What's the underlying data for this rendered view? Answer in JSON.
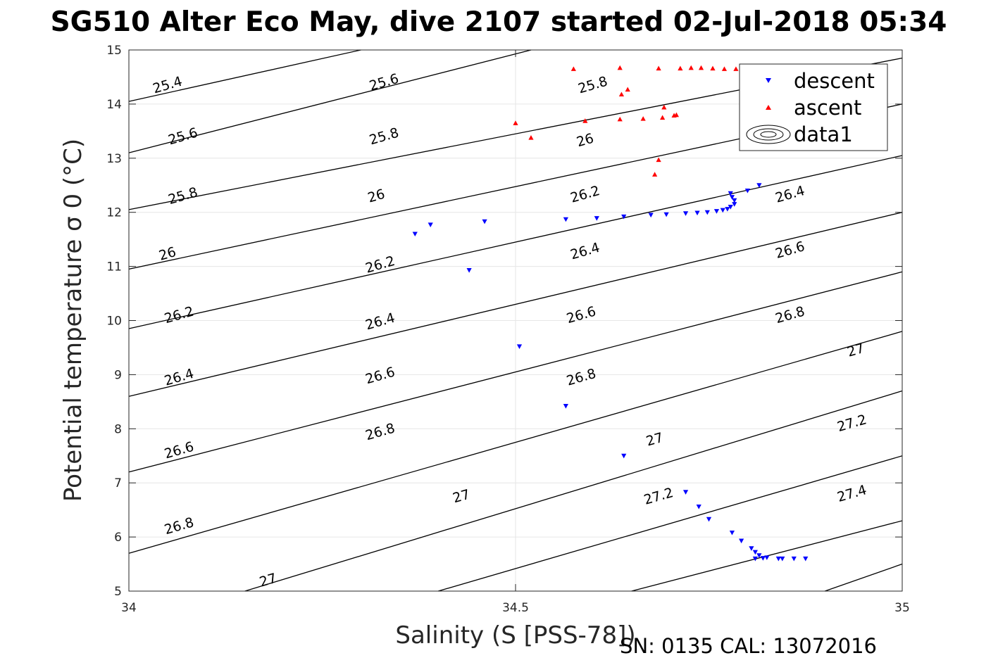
{
  "title": "SG510 Alter Eco May, dive 2107 started 02-Jul-2018 05:34",
  "footer": "SN: 0135  CAL: 13072016",
  "chart_data": {
    "type": "scatter",
    "title": "SG510 Alter Eco May, dive 2107 started 02-Jul-2018 05:34",
    "xlabel": "Salinity (S [PSS-78])",
    "ylabel": "Potential temperature σ 0 (°C)",
    "xlim": [
      34,
      35
    ],
    "ylim": [
      5,
      15
    ],
    "xticks": [
      34,
      34.5,
      35
    ],
    "xtick_labels": [
      "34",
      "34.5",
      "35"
    ],
    "yticks": [
      5,
      6,
      7,
      8,
      9,
      10,
      11,
      12,
      13,
      14,
      15
    ],
    "ytick_labels": [
      "5",
      "6",
      "7",
      "8",
      "9",
      "10",
      "11",
      "12",
      "13",
      "14",
      "15"
    ],
    "grid": true,
    "legend": {
      "position": "top-right",
      "entries": [
        {
          "label": "descent",
          "marker": "triangle-down",
          "color": "#0000ff"
        },
        {
          "label": "ascent",
          "marker": "triangle-up",
          "color": "#ff0000"
        },
        {
          "label": "data1",
          "marker": "contour",
          "color": "#000000"
        }
      ]
    },
    "contours": [
      {
        "level": 25.4,
        "label": "25.4",
        "points": [
          [
            34,
            14.05
          ],
          [
            34.3,
            15
          ]
        ]
      },
      {
        "level": 25.6,
        "label": "25.6",
        "points": [
          [
            34,
            13.1
          ],
          [
            34.52,
            15
          ]
        ]
      },
      {
        "level": 25.8,
        "label": "25.8",
        "points": [
          [
            34,
            12.05
          ],
          [
            35,
            14.85
          ]
        ]
      },
      {
        "level": 26.0,
        "label": "26",
        "points": [
          [
            34,
            10.95
          ],
          [
            35,
            14.0
          ]
        ]
      },
      {
        "level": 26.2,
        "label": "26.2",
        "points": [
          [
            34,
            9.85
          ],
          [
            35,
            13.05
          ]
        ]
      },
      {
        "level": 26.4,
        "label": "26.4",
        "points": [
          [
            34,
            8.6
          ],
          [
            35,
            12.0
          ]
        ]
      },
      {
        "level": 26.6,
        "label": "26.6",
        "points": [
          [
            34,
            7.2
          ],
          [
            35,
            10.9
          ]
        ]
      },
      {
        "level": 26.8,
        "label": "26.8",
        "points": [
          [
            34,
            5.7
          ],
          [
            35,
            9.8
          ]
        ]
      },
      {
        "level": 27.0,
        "label": "27",
        "points": [
          [
            34.15,
            5
          ],
          [
            35,
            8.7
          ]
        ]
      },
      {
        "level": 27.2,
        "label": "27.2",
        "points": [
          [
            34.4,
            5
          ],
          [
            35,
            7.5
          ]
        ]
      },
      {
        "level": 27.4,
        "label": "27.4",
        "points": [
          [
            34.65,
            5
          ],
          [
            35,
            6.3
          ]
        ]
      },
      {
        "level": 27.6,
        "label": "",
        "points": [
          [
            34.9,
            5
          ],
          [
            35,
            5.5
          ]
        ]
      }
    ],
    "contour_labels": [
      {
        "text": "25.4",
        "x": 34.05,
        "y": 14.35,
        "angle": -16
      },
      {
        "text": "25.6",
        "x": 34.07,
        "y": 13.4,
        "angle": -16
      },
      {
        "text": "25.8",
        "x": 34.07,
        "y": 12.3,
        "angle": -16
      },
      {
        "text": "26",
        "x": 34.05,
        "y": 11.23,
        "angle": -16
      },
      {
        "text": "26.2",
        "x": 34.065,
        "y": 10.1,
        "angle": -16
      },
      {
        "text": "26.4",
        "x": 34.065,
        "y": 8.95,
        "angle": -16
      },
      {
        "text": "26.6",
        "x": 34.065,
        "y": 7.6,
        "angle": -16
      },
      {
        "text": "26.8",
        "x": 34.065,
        "y": 6.2,
        "angle": -16
      },
      {
        "text": "25.6",
        "x": 34.33,
        "y": 14.4,
        "angle": -16
      },
      {
        "text": "25.8",
        "x": 34.33,
        "y": 13.4,
        "angle": -16
      },
      {
        "text": "26",
        "x": 34.32,
        "y": 12.3,
        "angle": -16
      },
      {
        "text": "26.2",
        "x": 34.325,
        "y": 11.03,
        "angle": -16
      },
      {
        "text": "26.4",
        "x": 34.325,
        "y": 9.98,
        "angle": -16
      },
      {
        "text": "26.6",
        "x": 34.325,
        "y": 8.98,
        "angle": -16
      },
      {
        "text": "26.8",
        "x": 34.325,
        "y": 7.94,
        "angle": -16
      },
      {
        "text": "27",
        "x": 34.43,
        "y": 6.75,
        "angle": -16
      },
      {
        "text": "27",
        "x": 34.18,
        "y": 5.2,
        "angle": -16
      },
      {
        "text": "25.8",
        "x": 34.6,
        "y": 14.35,
        "angle": -16
      },
      {
        "text": "26",
        "x": 34.59,
        "y": 13.33,
        "angle": -16
      },
      {
        "text": "26.2",
        "x": 34.59,
        "y": 12.33,
        "angle": -16
      },
      {
        "text": "26.4",
        "x": 34.59,
        "y": 11.28,
        "angle": -16
      },
      {
        "text": "26.6",
        "x": 34.585,
        "y": 10.1,
        "angle": -16
      },
      {
        "text": "26.8",
        "x": 34.585,
        "y": 8.95,
        "angle": -16
      },
      {
        "text": "27",
        "x": 34.68,
        "y": 7.8,
        "angle": -16
      },
      {
        "text": "27.2",
        "x": 34.685,
        "y": 6.75,
        "angle": -16
      },
      {
        "text": "26.4",
        "x": 34.855,
        "y": 12.33,
        "angle": -16
      },
      {
        "text": "26.6",
        "x": 34.855,
        "y": 11.3,
        "angle": -16
      },
      {
        "text": "26.8",
        "x": 34.855,
        "y": 10.1,
        "angle": -16
      },
      {
        "text": "27",
        "x": 34.94,
        "y": 9.45,
        "angle": -16
      },
      {
        "text": "27.2",
        "x": 34.935,
        "y": 8.1,
        "angle": -16
      },
      {
        "text": "27.4",
        "x": 34.935,
        "y": 6.8,
        "angle": -16
      }
    ],
    "series": [
      {
        "name": "descent",
        "marker": "triangle-down",
        "color": "#0000ff",
        "points": [
          [
            34.37,
            11.6
          ],
          [
            34.39,
            11.77
          ],
          [
            34.46,
            11.83
          ],
          [
            34.44,
            10.93
          ],
          [
            34.505,
            9.52
          ],
          [
            34.565,
            8.42
          ],
          [
            34.64,
            7.5
          ],
          [
            34.565,
            11.87
          ],
          [
            34.605,
            11.89
          ],
          [
            34.64,
            11.92
          ],
          [
            34.675,
            11.95
          ],
          [
            34.695,
            11.96
          ],
          [
            34.72,
            11.98
          ],
          [
            34.735,
            11.99
          ],
          [
            34.748,
            12.0
          ],
          [
            34.76,
            12.02
          ],
          [
            34.768,
            12.04
          ],
          [
            34.774,
            12.06
          ],
          [
            34.778,
            12.1
          ],
          [
            34.783,
            12.15
          ],
          [
            34.783,
            12.22
          ],
          [
            34.78,
            12.28
          ],
          [
            34.778,
            12.35
          ],
          [
            34.8,
            12.4
          ],
          [
            34.815,
            12.5
          ],
          [
            34.72,
            6.83
          ],
          [
            34.737,
            6.56
          ],
          [
            34.75,
            6.33
          ],
          [
            34.78,
            6.08
          ],
          [
            34.792,
            5.93
          ],
          [
            34.805,
            5.79
          ],
          [
            34.81,
            5.72
          ],
          [
            34.815,
            5.66
          ],
          [
            34.825,
            5.62
          ],
          [
            34.84,
            5.6
          ],
          [
            34.86,
            5.6
          ],
          [
            34.875,
            5.6
          ],
          [
            34.81,
            5.6
          ],
          [
            34.82,
            5.61
          ],
          [
            34.845,
            5.6
          ]
        ]
      },
      {
        "name": "ascent",
        "marker": "triangle-up",
        "color": "#ff0000",
        "points": [
          [
            34.5,
            13.65
          ],
          [
            34.52,
            13.38
          ],
          [
            34.575,
            14.65
          ],
          [
            34.59,
            13.69
          ],
          [
            34.635,
            14.67
          ],
          [
            34.637,
            14.18
          ],
          [
            34.645,
            14.27
          ],
          [
            34.635,
            13.72
          ],
          [
            34.665,
            13.73
          ],
          [
            34.68,
            12.7
          ],
          [
            34.685,
            12.97
          ],
          [
            34.69,
            13.75
          ],
          [
            34.692,
            13.94
          ],
          [
            34.705,
            13.79
          ],
          [
            34.708,
            13.8
          ],
          [
            34.685,
            14.66
          ],
          [
            34.713,
            14.66
          ],
          [
            34.727,
            14.67
          ],
          [
            34.74,
            14.67
          ],
          [
            34.755,
            14.66
          ],
          [
            34.77,
            14.65
          ],
          [
            34.785,
            14.65
          ],
          [
            34.8,
            14.64
          ],
          [
            34.81,
            14.63
          ]
        ]
      }
    ]
  }
}
